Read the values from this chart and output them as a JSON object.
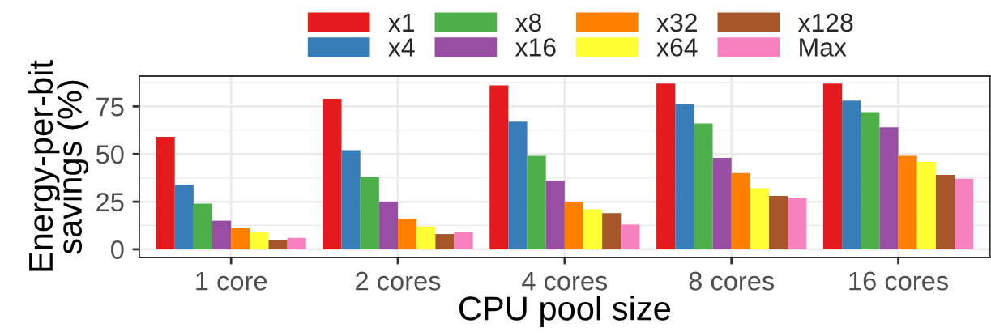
{
  "chart_data": {
    "type": "bar",
    "xlabel": "CPU pool size",
    "ylabel": "Energy-per-bit\nsavings (%)",
    "categories": [
      "1 core",
      "2 cores",
      "4 cores",
      "8 cores",
      "16 cores"
    ],
    "series": [
      {
        "name": "x1",
        "color": "#e41a1c",
        "values": [
          59,
          79,
          86,
          87,
          87
        ]
      },
      {
        "name": "x4",
        "color": "#377eb8",
        "values": [
          34,
          52,
          67,
          76,
          78
        ]
      },
      {
        "name": "x8",
        "color": "#4daf4a",
        "values": [
          24,
          38,
          49,
          66,
          72
        ]
      },
      {
        "name": "x16",
        "color": "#984ea3",
        "values": [
          15,
          25,
          36,
          48,
          64
        ]
      },
      {
        "name": "x32",
        "color": "#ff7f00",
        "values": [
          11,
          16,
          25,
          40,
          49
        ]
      },
      {
        "name": "x64",
        "color": "#ffff33",
        "values": [
          9,
          12,
          21,
          32,
          46
        ]
      },
      {
        "name": "x128",
        "color": "#a65628",
        "values": [
          5,
          8,
          19,
          28,
          39
        ]
      },
      {
        "name": "Max",
        "color": "#f781bf",
        "values": [
          6,
          9,
          13,
          27,
          37
        ]
      }
    ],
    "ylim": [
      -4.3,
      90.9
    ],
    "yticks": [
      0,
      25,
      50,
      75
    ],
    "grid": true,
    "legend": "top"
  }
}
